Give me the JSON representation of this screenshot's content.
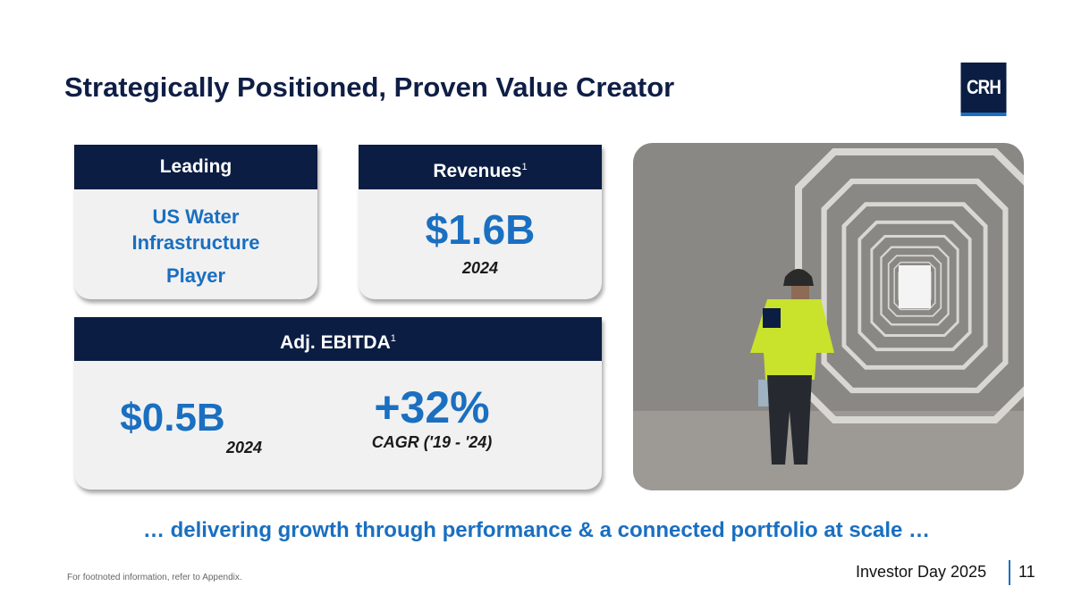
{
  "title": "Strategically Positioned, Proven Value Creator",
  "logo": "CRH",
  "cards": {
    "leading": {
      "header": "Leading",
      "lines": [
        "US Water",
        "Infrastructure",
        "Player"
      ]
    },
    "revenues": {
      "header": "Revenues",
      "footnote": "1",
      "value": "$1.6B",
      "year": "2024"
    },
    "ebitda": {
      "header": "Adj. EBITDA",
      "footnote": "1",
      "value": "$0.5B",
      "year": "2024",
      "growth": "+32%",
      "growth_label": "CAGR ('19 - '24)"
    }
  },
  "tagline": "… delivering growth through performance & a connected portfolio at scale …",
  "footer": {
    "footnote": "For footnoted information, refer to Appendix.",
    "event": "Investor Day 2025",
    "page": "11"
  },
  "colors": {
    "navy": "#0b1d43",
    "blue": "#1a6fc0",
    "card_bg": "#f1f1f2"
  }
}
